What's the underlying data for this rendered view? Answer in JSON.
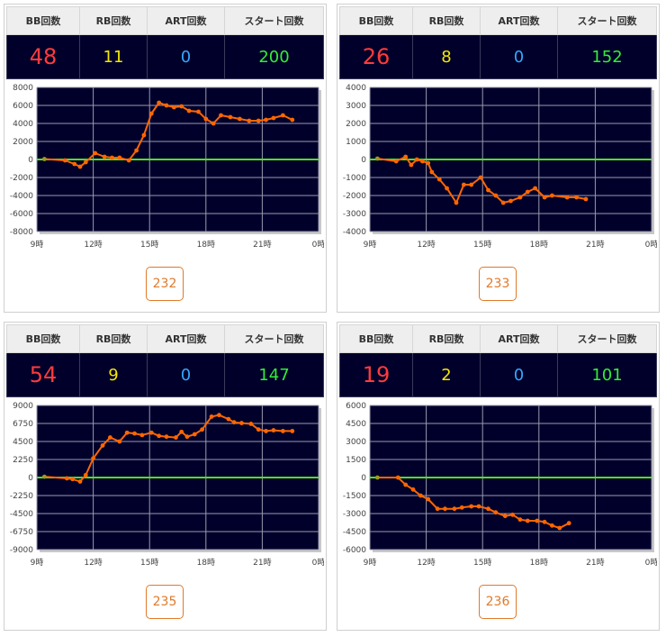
{
  "header_labels": {
    "bb": "BB回数",
    "rb": "RB回数",
    "art": "ART回数",
    "start": "スタート回数"
  },
  "colors": {
    "plot_bg": "#00002a",
    "line": "#ff6600",
    "zero_line": "#55dd22",
    "bb": "#ff3b3b",
    "rb": "#f4e800",
    "art": "#34a7ff",
    "start": "#33ee33",
    "button": "#e07a2a"
  },
  "machines": [
    {
      "bb": "48",
      "rb": "11",
      "art": "0",
      "start": "200",
      "machine_no": "232"
    },
    {
      "bb": "26",
      "rb": "8",
      "art": "0",
      "start": "152",
      "machine_no": "233"
    },
    {
      "bb": "54",
      "rb": "9",
      "art": "0",
      "start": "147",
      "machine_no": "235"
    },
    {
      "bb": "19",
      "rb": "2",
      "art": "0",
      "start": "101",
      "machine_no": "236"
    }
  ],
  "chart_data": [
    {
      "type": "line",
      "x_tick_labels": [
        "9時",
        "12時",
        "15時",
        "18時",
        "21時",
        "0時"
      ],
      "xlim": [
        9,
        24
      ],
      "ylim": [
        -8000,
        8000
      ],
      "y_ticks": [
        8000,
        6000,
        4000,
        2000,
        0,
        -2000,
        -4000,
        -6000,
        -8000
      ],
      "x": [
        9.4,
        10.5,
        11.0,
        11.3,
        11.6,
        12.1,
        12.6,
        13.0,
        13.4,
        13.9,
        14.3,
        14.7,
        15.1,
        15.5,
        15.9,
        16.3,
        16.7,
        17.1,
        17.6,
        18.0,
        18.4,
        18.8,
        19.3,
        19.8,
        20.3,
        20.8,
        21.2,
        21.6,
        22.1,
        22.6
      ],
      "y": [
        50,
        -100,
        -500,
        -800,
        -300,
        700,
        300,
        200,
        200,
        -100,
        1000,
        2700,
        5100,
        6300,
        6000,
        5800,
        5900,
        5400,
        5300,
        4500,
        4000,
        4900,
        4700,
        4500,
        4300,
        4300,
        4400,
        4600,
        4900,
        4400
      ]
    },
    {
      "type": "line",
      "x_tick_labels": [
        "9時",
        "12時",
        "15時",
        "18時",
        "21時",
        "0時"
      ],
      "xlim": [
        9,
        24
      ],
      "ylim": [
        -4000,
        4000
      ],
      "y_ticks": [
        4000,
        3000,
        2000,
        1000,
        0,
        -1000,
        -2000,
        -3000,
        -4000
      ],
      "x": [
        9.4,
        10.4,
        10.9,
        11.2,
        11.5,
        11.8,
        12.1,
        12.3,
        12.7,
        13.1,
        13.6,
        14.0,
        14.4,
        14.9,
        15.3,
        15.7,
        16.1,
        16.5,
        17.0,
        17.4,
        17.8,
        18.3,
        18.7,
        19.5,
        20.0,
        20.5
      ],
      "y": [
        50,
        -100,
        150,
        -300,
        0,
        -100,
        -200,
        -700,
        -1100,
        -1600,
        -2400,
        -1400,
        -1400,
        -1000,
        -1700,
        -2000,
        -2400,
        -2300,
        -2100,
        -1800,
        -1600,
        -2100,
        -2000,
        -2100,
        -2100,
        -2200
      ]
    },
    {
      "type": "line",
      "x_tick_labels": [
        "9時",
        "12時",
        "15時",
        "18時",
        "21時",
        "0時"
      ],
      "xlim": [
        9,
        24
      ],
      "ylim": [
        -9000,
        9000
      ],
      "y_ticks": [
        9000,
        6750,
        4500,
        2250,
        0,
        -2250,
        -4500,
        -6750,
        -9000
      ],
      "x": [
        9.4,
        10.6,
        10.9,
        11.3,
        11.6,
        12.0,
        12.5,
        12.9,
        13.4,
        13.8,
        14.2,
        14.6,
        15.1,
        15.5,
        15.9,
        16.4,
        16.7,
        17.0,
        17.4,
        17.8,
        18.3,
        18.7,
        19.2,
        19.5,
        19.9,
        20.4,
        20.8,
        21.2,
        21.6,
        22.1,
        22.6
      ],
      "y": [
        100,
        -100,
        -200,
        -500,
        300,
        2400,
        4000,
        5000,
        4500,
        5600,
        5500,
        5300,
        5600,
        5200,
        5100,
        5000,
        5700,
        5100,
        5400,
        6000,
        7600,
        7800,
        7300,
        6900,
        6800,
        6700,
        6000,
        5800,
        5900,
        5800,
        5800
      ]
    },
    {
      "type": "line",
      "x_tick_labels": [
        "9時",
        "12時",
        "15時",
        "18時",
        "21時",
        "0時"
      ],
      "xlim": [
        9,
        24
      ],
      "ylim": [
        -6000,
        6000
      ],
      "y_ticks": [
        6000,
        4500,
        3000,
        1500,
        0,
        -1500,
        -3000,
        -4500,
        -6000
      ],
      "x": [
        9.4,
        10.5,
        10.9,
        11.3,
        11.7,
        12.1,
        12.6,
        13.0,
        13.5,
        13.9,
        14.4,
        14.8,
        15.3,
        15.7,
        16.2,
        16.6,
        17.0,
        17.4,
        17.9,
        18.3,
        18.7,
        19.1,
        19.6
      ],
      "y": [
        0,
        0,
        -600,
        -1000,
        -1500,
        -1800,
        -2600,
        -2600,
        -2600,
        -2500,
        -2400,
        -2400,
        -2600,
        -2900,
        -3200,
        -3100,
        -3500,
        -3600,
        -3600,
        -3700,
        -4000,
        -4200,
        -3800
      ]
    }
  ]
}
